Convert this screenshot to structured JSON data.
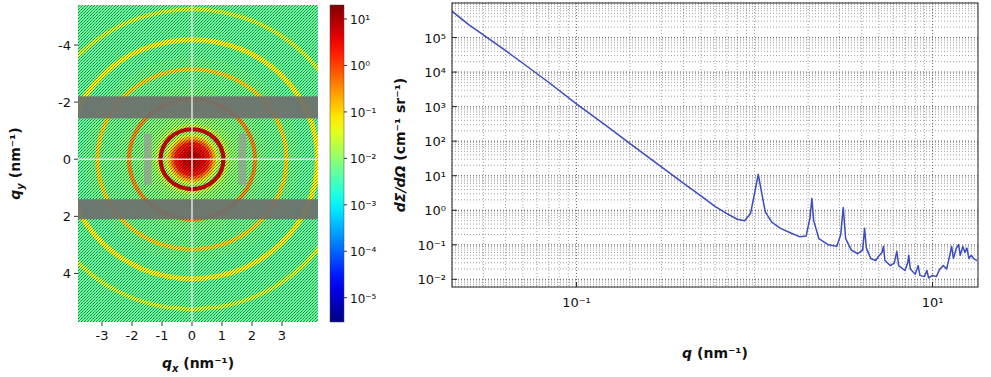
{
  "chart_data": [
    {
      "type": "heatmap",
      "x_label": "qx (nm⁻¹)",
      "y_label": "qy (nm⁻¹)",
      "xlim": [
        -3.8,
        4.2
      ],
      "ylim": [
        -5.4,
        5.7
      ],
      "xticks": [
        -3,
        -2,
        -1,
        0,
        1,
        2,
        3
      ],
      "yticks": [
        -4,
        -2,
        0,
        2,
        4
      ],
      "grid": true,
      "radial_profile": {
        "q_edges": [
          0,
          0.15,
          0.3,
          0.45,
          0.6,
          0.7,
          0.8,
          0.9,
          0.98,
          1.12,
          1.25,
          1.5,
          1.8,
          2.03,
          2.17,
          2.5,
          2.9,
          3.08,
          3.22,
          3.6,
          4.1,
          4.27,
          4.7,
          5.18,
          5.32,
          6.0,
          7.5
        ],
        "values": [
          8,
          6,
          4,
          2,
          0.6,
          0.15,
          0.03,
          0.01,
          5,
          0.02,
          0.01,
          0.008,
          0.007,
          0.3,
          0.007,
          0.006,
          0.006,
          0.1,
          0.006,
          0.005,
          0.06,
          0.005,
          0.005,
          0.03,
          0.005,
          0.005
        ]
      },
      "masked_qy": [
        [
          -2.2,
          -1.43
        ],
        [
          1.4,
          2.1
        ]
      ],
      "masked_rects": [
        {
          "qx": [
            -1.6,
            -1.35
          ],
          "qy": [
            -0.9,
            0.9
          ]
        },
        {
          "qx": [
            1.55,
            1.8
          ],
          "qy": [
            -0.9,
            0.9
          ]
        }
      ],
      "colorbar": {
        "range": [
          3e-06,
          20
        ],
        "ticks": [
          {
            "value": 10,
            "label": "10¹"
          },
          {
            "value": 1,
            "label": "10⁰"
          },
          {
            "value": 0.1,
            "label": "10⁻¹"
          },
          {
            "value": 0.01,
            "label": "10⁻²"
          },
          {
            "value": 0.001,
            "label": "10⁻³"
          },
          {
            "value": 0.0001,
            "label": "10⁻⁴"
          },
          {
            "value": 1e-05,
            "label": "10⁻⁵"
          }
        ]
      }
    },
    {
      "type": "line",
      "x_label": "q (nm⁻¹)",
      "y_label": "dΣ/dΩ (cm⁻¹ sr⁻¹)",
      "log": true,
      "grid": true,
      "color": "#3b4cc0",
      "xlim": [
        0.02,
        18
      ],
      "ylim": [
        0.006,
        1000000
      ],
      "xticks": [
        {
          "value": 0.1,
          "label": "10⁻¹"
        },
        {
          "value": 10,
          "label": "10¹"
        }
      ],
      "yticks": [
        {
          "value": 100000,
          "label": "10⁵"
        },
        {
          "value": 10000,
          "label": "10⁴"
        },
        {
          "value": 1000,
          "label": "10³"
        },
        {
          "value": 100,
          "label": "10²"
        },
        {
          "value": 10,
          "label": "10¹"
        },
        {
          "value": 1,
          "label": "10⁰"
        },
        {
          "value": 0.1,
          "label": "10⁻¹"
        },
        {
          "value": 0.01,
          "label": "10⁻²"
        }
      ],
      "x": [
        0.02,
        0.025,
        0.03,
        0.04,
        0.05,
        0.07,
        0.1,
        0.15,
        0.2,
        0.3,
        0.4,
        0.5,
        0.6,
        0.7,
        0.8,
        0.88,
        0.95,
        1.0,
        1.05,
        1.1,
        1.15,
        1.25,
        1.4,
        1.6,
        1.8,
        1.95,
        2.05,
        2.1,
        2.15,
        2.3,
        2.6,
        2.9,
        3.05,
        3.15,
        3.25,
        3.5,
        3.8,
        4.05,
        4.15,
        4.25,
        4.5,
        4.8,
        4.95,
        5.2,
        5.3,
        5.4,
        5.8,
        6.1,
        6.3,
        6.45,
        7.0,
        7.25,
        7.35,
        7.5,
        8.0,
        8.3,
        8.5,
        9.0,
        9.3,
        9.5,
        10.0,
        10.5,
        11.0,
        11.5,
        12.0,
        12.5,
        12.8,
        13.1,
        13.6,
        14.0,
        14.3,
        14.8,
        15.2,
        15.6,
        16.0,
        16.5,
        17.0,
        17.8
      ],
      "values": [
        580000,
        230000,
        120000,
        42000,
        18000,
        5000,
        1200,
        260,
        85,
        18,
        6,
        2.6,
        1.3,
        0.8,
        0.55,
        0.5,
        0.8,
        3,
        11,
        3,
        0.9,
        0.45,
        0.3,
        0.22,
        0.17,
        0.18,
        0.6,
        2.2,
        0.5,
        0.15,
        0.1,
        0.09,
        0.2,
        1.2,
        0.15,
        0.07,
        0.055,
        0.07,
        0.3,
        0.08,
        0.04,
        0.035,
        0.045,
        0.06,
        0.09,
        0.035,
        0.025,
        0.03,
        0.065,
        0.025,
        0.018,
        0.03,
        0.05,
        0.02,
        0.014,
        0.025,
        0.013,
        0.012,
        0.018,
        0.011,
        0.013,
        0.012,
        0.02,
        0.025,
        0.02,
        0.05,
        0.09,
        0.04,
        0.08,
        0.1,
        0.05,
        0.09,
        0.06,
        0.08,
        0.04,
        0.05,
        0.04,
        0.035
      ]
    }
  ]
}
